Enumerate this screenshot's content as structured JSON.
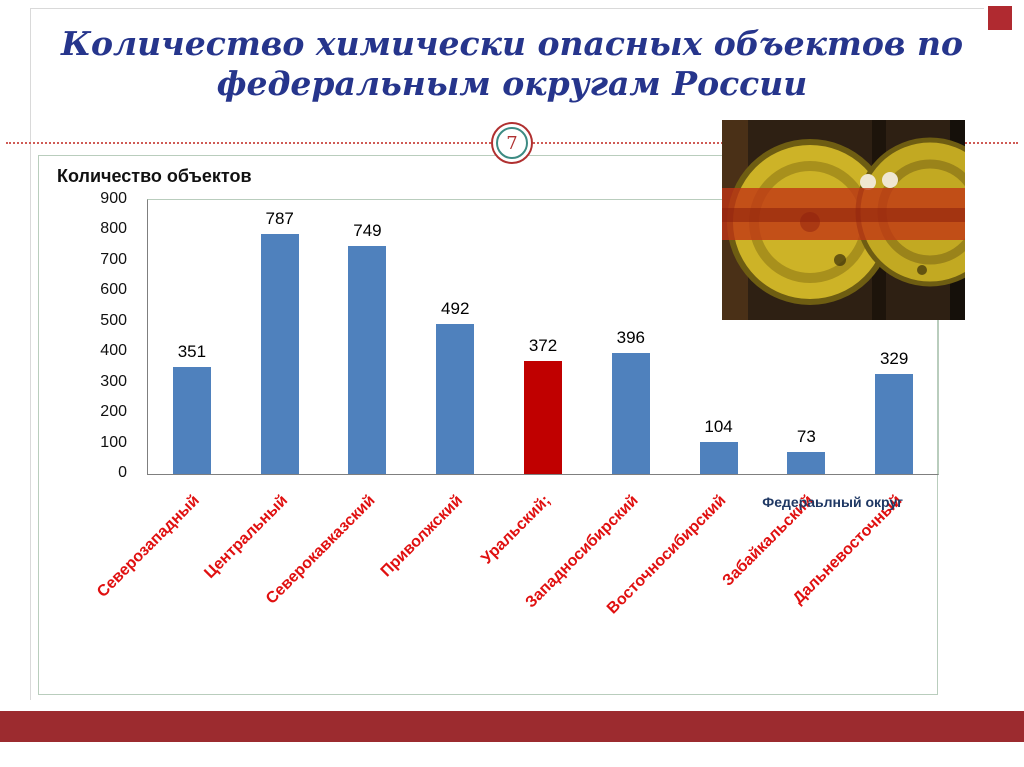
{
  "slide": {
    "title_line1": "Количество химически опасных объектов по",
    "title_line2": "федеральным округам России",
    "page_number": "7"
  },
  "chart_data": {
    "type": "bar",
    "y_axis_title": "Количество объектов",
    "x_axis_title": "Федераьлный округ",
    "ylim": [
      0,
      900
    ],
    "ytick_step": 100,
    "categories": [
      "Северозападный",
      "Центральный",
      "Северокавказский",
      "Приволжский",
      "Уральский;",
      "Западносибирский",
      "Восточносибирский",
      "Забайкальский",
      "Дальневосточный"
    ],
    "values": [
      351,
      787,
      749,
      492,
      372,
      396,
      104,
      73,
      329
    ],
    "colors": [
      "#4f81bd",
      "#4f81bd",
      "#4f81bd",
      "#4f81bd",
      "#c00000",
      "#4f81bd",
      "#4f81bd",
      "#4f81bd",
      "#4f81bd"
    ],
    "legend": "none",
    "grid": "off"
  },
  "colors": {
    "title": "#26358c",
    "bar_default": "#4f81bd",
    "bar_highlight": "#c00000",
    "category_label": "#e01010",
    "accent_band": "#9c2b2f"
  },
  "image": {
    "name": "chemical-drums-photo",
    "description": "yellow chemical drums with red hazard stripe"
  }
}
